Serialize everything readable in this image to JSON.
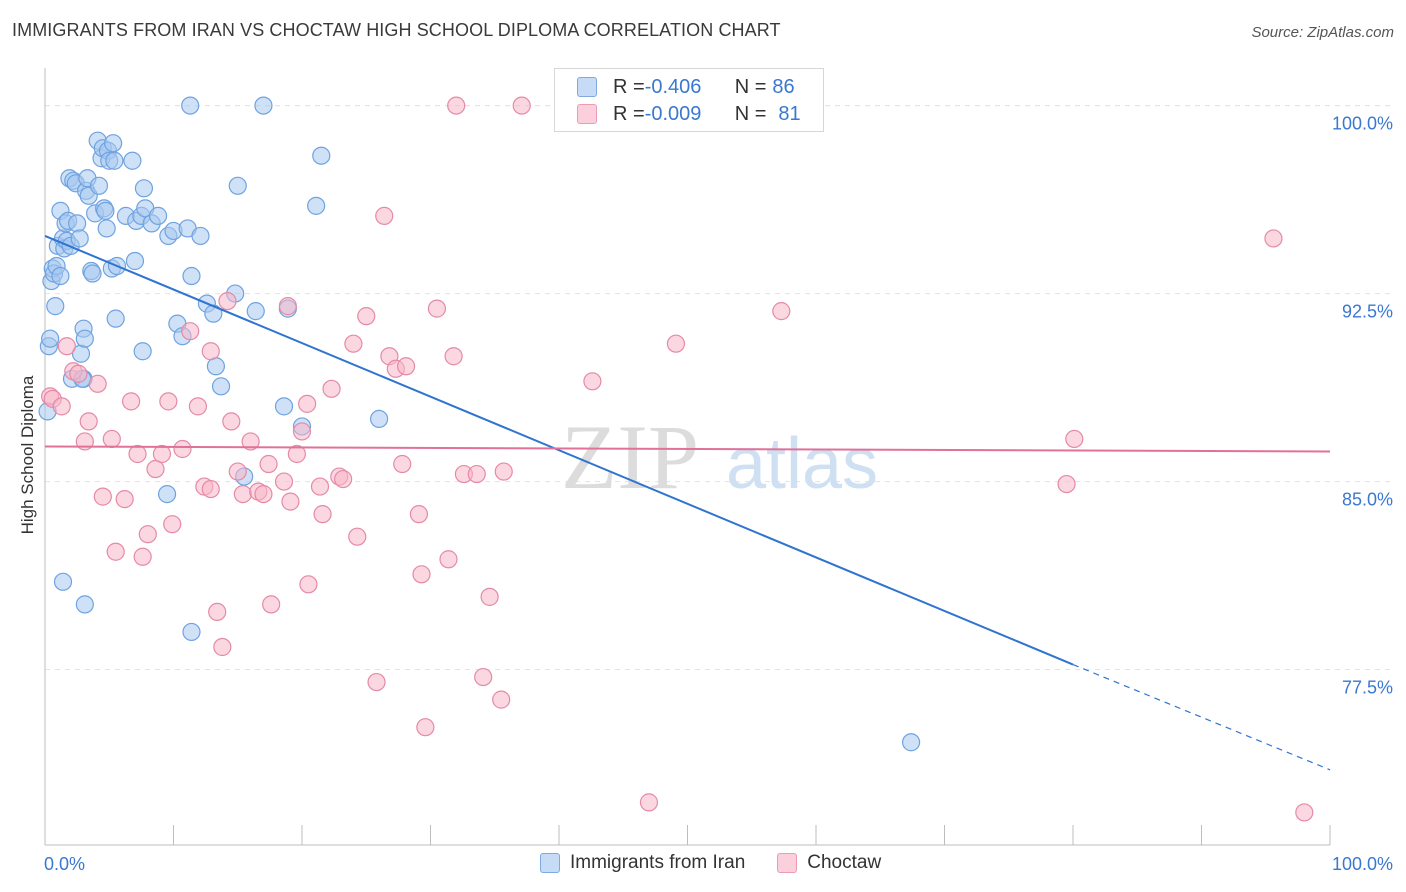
{
  "title": "IMMIGRANTS FROM IRAN VS CHOCTAW HIGH SCHOOL DIPLOMA CORRELATION CHART",
  "source": "Source: ZipAtlas.com",
  "watermark": {
    "zip": "ZIP",
    "atlas": "atlas"
  },
  "legend": {
    "rows": [
      {
        "r_label": "R = ",
        "r_value": "-0.406",
        "n_label": "N = ",
        "n_value": "86",
        "color": "#a8c8f0"
      },
      {
        "r_label": "R = ",
        "r_value": "-0.009",
        "n_label": "N = ",
        "n_value": "81",
        "color": "#f7b6c8"
      }
    ]
  },
  "bottom_legend": [
    {
      "label": "Immigrants from Iran",
      "color": "#a8c8f0"
    },
    {
      "label": "Choctaw",
      "color": "#f7b6c8"
    }
  ],
  "chart_data": {
    "type": "scatter",
    "title": "IMMIGRANTS FROM IRAN VS CHOCTAW HIGH SCHOOL DIPLOMA CORRELATION CHART",
    "xlabel": "",
    "ylabel": "High School Diploma",
    "xlim": [
      0,
      100
    ],
    "ylim": [
      70.5,
      101.5
    ],
    "x_tick_labels": [
      "0.0%",
      "100.0%"
    ],
    "y_ticks": [
      77.5,
      85.0,
      92.5,
      100.0
    ],
    "y_tick_labels": [
      "77.5%",
      "85.0%",
      "92.5%",
      "100.0%"
    ],
    "grid": true,
    "legend_position": "top-center",
    "series": [
      {
        "name": "Immigrants from Iran",
        "color": "#6fa3e0",
        "fill": "#a8c8f0",
        "r": -0.406,
        "n": 86,
        "trend": {
          "x0": 0,
          "y0": 94.8,
          "x1": 80,
          "y1": 77.7,
          "dash_to_x": 100,
          "dash_to_y": 73.5,
          "color": "#2f74d0"
        },
        "points": [
          [
            0.2,
            87.8
          ],
          [
            0.3,
            90.4
          ],
          [
            0.4,
            90.7
          ],
          [
            0.5,
            93.0
          ],
          [
            0.6,
            93.5
          ],
          [
            0.7,
            93.3
          ],
          [
            0.8,
            92.0
          ],
          [
            0.9,
            93.6
          ],
          [
            1.0,
            94.4
          ],
          [
            1.2,
            95.8
          ],
          [
            1.4,
            94.7
          ],
          [
            1.5,
            94.3
          ],
          [
            1.6,
            95.3
          ],
          [
            1.7,
            94.6
          ],
          [
            1.8,
            95.4
          ],
          [
            1.9,
            97.1
          ],
          [
            2.0,
            94.4
          ],
          [
            2.1,
            89.1
          ],
          [
            2.2,
            97.0
          ],
          [
            2.4,
            96.9
          ],
          [
            2.5,
            95.3
          ],
          [
            2.7,
            94.7
          ],
          [
            2.8,
            90.1
          ],
          [
            3.0,
            89.1
          ],
          [
            3.0,
            91.1
          ],
          [
            3.1,
            90.7
          ],
          [
            3.2,
            96.6
          ],
          [
            3.3,
            97.1
          ],
          [
            3.4,
            96.4
          ],
          [
            3.6,
            93.4
          ],
          [
            3.7,
            93.3
          ],
          [
            3.9,
            95.7
          ],
          [
            4.1,
            98.6
          ],
          [
            4.2,
            96.8
          ],
          [
            4.4,
            97.9
          ],
          [
            4.5,
            98.3
          ],
          [
            4.6,
            95.9
          ],
          [
            4.7,
            95.8
          ],
          [
            4.8,
            95.1
          ],
          [
            4.9,
            98.2
          ],
          [
            5.0,
            97.8
          ],
          [
            5.2,
            93.5
          ],
          [
            5.3,
            98.5
          ],
          [
            5.4,
            97.8
          ],
          [
            5.5,
            91.5
          ],
          [
            5.6,
            93.6
          ],
          [
            6.3,
            95.6
          ],
          [
            6.8,
            97.8
          ],
          [
            7.0,
            93.8
          ],
          [
            7.1,
            95.4
          ],
          [
            7.5,
            95.6
          ],
          [
            7.6,
            90.2
          ],
          [
            7.7,
            96.7
          ],
          [
            7.8,
            95.9
          ],
          [
            8.3,
            95.3
          ],
          [
            8.8,
            95.6
          ],
          [
            9.5,
            84.5
          ],
          [
            9.6,
            94.8
          ],
          [
            10.0,
            95.0
          ],
          [
            10.3,
            91.3
          ],
          [
            10.7,
            90.8
          ],
          [
            11.1,
            95.1
          ],
          [
            11.3,
            100.0
          ],
          [
            11.4,
            93.2
          ],
          [
            12.1,
            94.8
          ],
          [
            12.6,
            92.1
          ],
          [
            13.1,
            91.7
          ],
          [
            13.3,
            89.6
          ],
          [
            13.7,
            88.8
          ],
          [
            14.8,
            92.5
          ],
          [
            15.0,
            96.8
          ],
          [
            15.5,
            85.2
          ],
          [
            16.4,
            91.8
          ],
          [
            17.0,
            100.0
          ],
          [
            18.6,
            88.0
          ],
          [
            18.9,
            91.9
          ],
          [
            20.0,
            87.2
          ],
          [
            21.1,
            96.0
          ],
          [
            21.5,
            98.0
          ],
          [
            26.0,
            87.5
          ],
          [
            1.4,
            81.0
          ],
          [
            3.1,
            80.1
          ],
          [
            11.4,
            79.0
          ],
          [
            67.4,
            74.6
          ],
          [
            2.9,
            89.1
          ],
          [
            1.2,
            93.2
          ]
        ]
      },
      {
        "name": "Choctaw",
        "color": "#e58aa6",
        "fill": "#f7b6c8",
        "r": -0.009,
        "n": 81,
        "trend": {
          "x0": 0,
          "y0": 86.4,
          "x1": 100,
          "y1": 86.2,
          "color": "#e0729a"
        },
        "points": [
          [
            0.4,
            88.4
          ],
          [
            0.6,
            88.3
          ],
          [
            1.3,
            88.0
          ],
          [
            1.7,
            90.4
          ],
          [
            2.2,
            89.4
          ],
          [
            2.6,
            89.3
          ],
          [
            3.1,
            86.6
          ],
          [
            3.4,
            87.4
          ],
          [
            4.1,
            88.9
          ],
          [
            4.5,
            84.4
          ],
          [
            5.2,
            86.7
          ],
          [
            5.5,
            82.2
          ],
          [
            6.2,
            84.3
          ],
          [
            6.7,
            88.2
          ],
          [
            7.2,
            86.1
          ],
          [
            7.6,
            82.0
          ],
          [
            8.0,
            82.9
          ],
          [
            8.6,
            85.5
          ],
          [
            9.1,
            86.1
          ],
          [
            9.6,
            88.2
          ],
          [
            9.9,
            83.3
          ],
          [
            10.7,
            86.3
          ],
          [
            11.3,
            91.0
          ],
          [
            11.9,
            88.0
          ],
          [
            12.4,
            84.8
          ],
          [
            12.9,
            84.7
          ],
          [
            12.9,
            90.2
          ],
          [
            13.4,
            79.8
          ],
          [
            13.8,
            78.4
          ],
          [
            14.2,
            92.2
          ],
          [
            14.5,
            87.4
          ],
          [
            15.0,
            85.4
          ],
          [
            15.4,
            84.5
          ],
          [
            16.0,
            86.6
          ],
          [
            16.6,
            84.6
          ],
          [
            17.0,
            84.5
          ],
          [
            17.4,
            85.7
          ],
          [
            17.6,
            80.1
          ],
          [
            18.6,
            85.0
          ],
          [
            18.9,
            92.0
          ],
          [
            19.1,
            84.2
          ],
          [
            19.6,
            86.1
          ],
          [
            20.0,
            87.0
          ],
          [
            20.4,
            88.1
          ],
          [
            20.5,
            80.9
          ],
          [
            21.4,
            84.8
          ],
          [
            21.6,
            83.7
          ],
          [
            22.3,
            88.7
          ],
          [
            22.9,
            85.2
          ],
          [
            23.2,
            85.1
          ],
          [
            24.0,
            90.5
          ],
          [
            24.3,
            82.8
          ],
          [
            25.0,
            91.6
          ],
          [
            25.8,
            77.0
          ],
          [
            26.4,
            95.6
          ],
          [
            26.8,
            90.0
          ],
          [
            27.3,
            89.5
          ],
          [
            27.8,
            85.7
          ],
          [
            28.1,
            89.6
          ],
          [
            29.1,
            83.7
          ],
          [
            29.3,
            81.3
          ],
          [
            29.6,
            75.2
          ],
          [
            30.5,
            91.9
          ],
          [
            31.4,
            81.9
          ],
          [
            31.8,
            90.0
          ],
          [
            32.0,
            100.0
          ],
          [
            32.6,
            85.3
          ],
          [
            33.6,
            85.3
          ],
          [
            34.1,
            77.2
          ],
          [
            34.6,
            80.4
          ],
          [
            35.5,
            76.3
          ],
          [
            35.7,
            85.4
          ],
          [
            37.1,
            100.0
          ],
          [
            42.6,
            89.0
          ],
          [
            47.0,
            72.2
          ],
          [
            49.1,
            90.5
          ],
          [
            57.3,
            91.8
          ],
          [
            79.5,
            84.9
          ],
          [
            80.1,
            86.7
          ],
          [
            95.6,
            94.7
          ],
          [
            98.0,
            71.8
          ]
        ]
      }
    ]
  }
}
